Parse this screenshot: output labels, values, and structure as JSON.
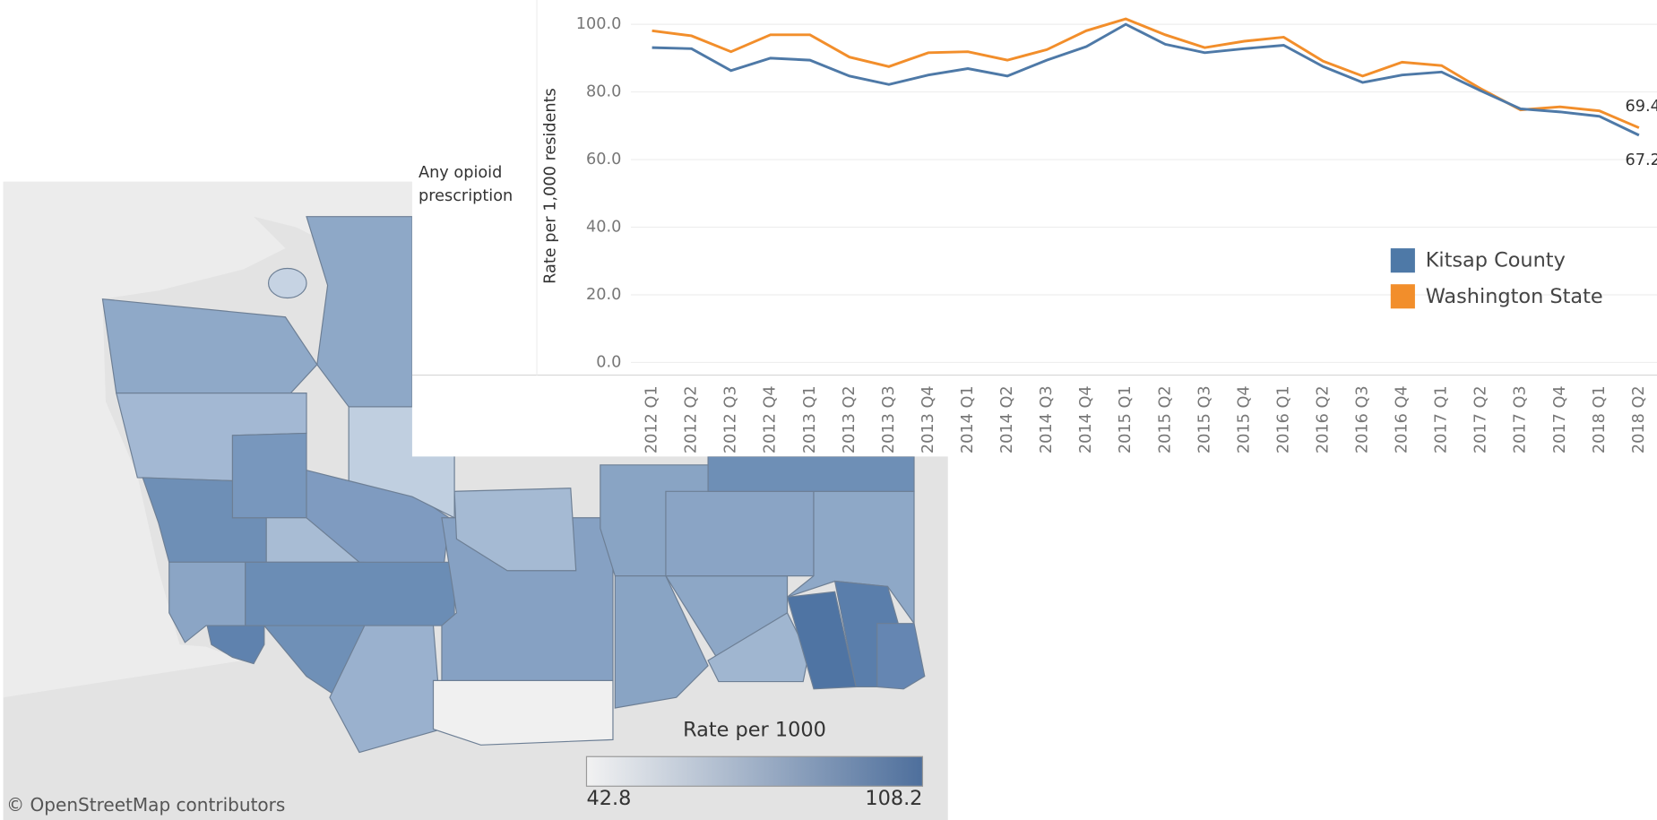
{
  "map": {
    "legend_title": "Rate per 1000",
    "scale_min": 42.8,
    "scale_max": 108.2,
    "color_low": "#f2f2f2",
    "color_high": "#4e6f9c",
    "attribution": "© OpenStreetMap contributors"
  },
  "chart_data": {
    "type": "line",
    "row_label": "Any opioid prescription",
    "y_label": "Rate per 1,000 residents",
    "categories": [
      "2012 Q1",
      "2012 Q2",
      "2012 Q3",
      "2012 Q4",
      "2013 Q1",
      "2013 Q2",
      "2013 Q3",
      "2013 Q4",
      "2014 Q1",
      "2014 Q2",
      "2014 Q3",
      "2014 Q4",
      "2015 Q1",
      "2015 Q2",
      "2015 Q3",
      "2015 Q4",
      "2016 Q1",
      "2016 Q2",
      "2016 Q3",
      "2016 Q4",
      "2017 Q1",
      "2017 Q2",
      "2017 Q3",
      "2017 Q4",
      "2018 Q1",
      "2018 Q2"
    ],
    "series": [
      {
        "name": "Kitsap County",
        "color": "#4e79a7",
        "values": [
          93.1,
          92.8,
          86.3,
          90.0,
          89.4,
          84.7,
          82.2,
          85.0,
          86.9,
          84.7,
          89.4,
          93.4,
          100.0,
          94.1,
          91.6,
          92.8,
          93.8,
          87.5,
          82.8,
          85.0,
          85.9,
          80.3,
          75.0,
          74.1,
          72.8,
          67.2
        ]
      },
      {
        "name": "Washington State",
        "color": "#f28e2b",
        "values": [
          98.1,
          96.6,
          91.9,
          96.9,
          96.9,
          90.3,
          87.5,
          91.6,
          91.9,
          89.4,
          92.5,
          98.1,
          101.6,
          96.9,
          93.1,
          95.0,
          96.2,
          89.1,
          84.7,
          88.8,
          87.8,
          80.9,
          74.7,
          75.6,
          74.4,
          69.4
        ]
      }
    ],
    "ylim": [
      0,
      105
    ],
    "yticks": [
      {
        "value": 0,
        "label": "0.0"
      },
      {
        "value": 20,
        "label": "20.0"
      },
      {
        "value": 40,
        "label": "40.0"
      },
      {
        "value": 60,
        "label": "60.0"
      },
      {
        "value": 80,
        "label": "80.0"
      },
      {
        "value": 100,
        "label": "100.0"
      }
    ],
    "grid": true,
    "legend": "bottom-right"
  }
}
